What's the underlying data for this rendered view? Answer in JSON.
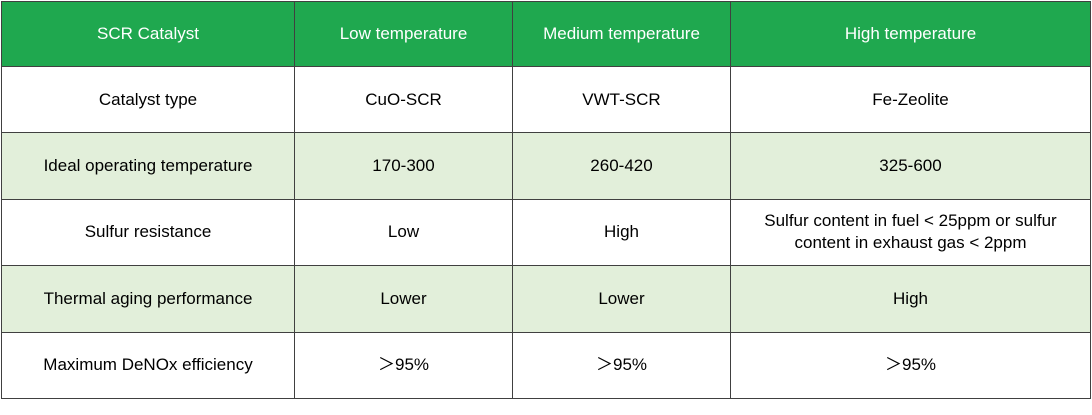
{
  "table": {
    "headers": [
      "SCR Catalyst",
      "Low temperature",
      "Medium temperature",
      "High temperature"
    ],
    "rows": [
      {
        "label": "Catalyst type",
        "cells": [
          "CuO-SCR",
          "VWT-SCR",
          "Fe-Zeolite"
        ]
      },
      {
        "label": "Ideal operating temperature",
        "cells": [
          "170-300",
          "260-420",
          "325-600"
        ]
      },
      {
        "label": "Sulfur resistance",
        "cells": [
          "Low",
          "High",
          "Sulfur content in fuel < 25ppm or sulfur content in exhaust gas < 2ppm"
        ]
      },
      {
        "label": "Thermal aging performance",
        "cells": [
          "Lower",
          "Lower",
          "High"
        ]
      },
      {
        "label": "Maximum DeNOx efficiency",
        "cells": [
          "＞95%",
          "＞95%",
          "＞95%"
        ]
      }
    ]
  },
  "colors": {
    "header_bg": "#1fa84f",
    "header_text": "#ffffff",
    "shaded_row_bg": "#e2efda",
    "border": "#404040"
  }
}
